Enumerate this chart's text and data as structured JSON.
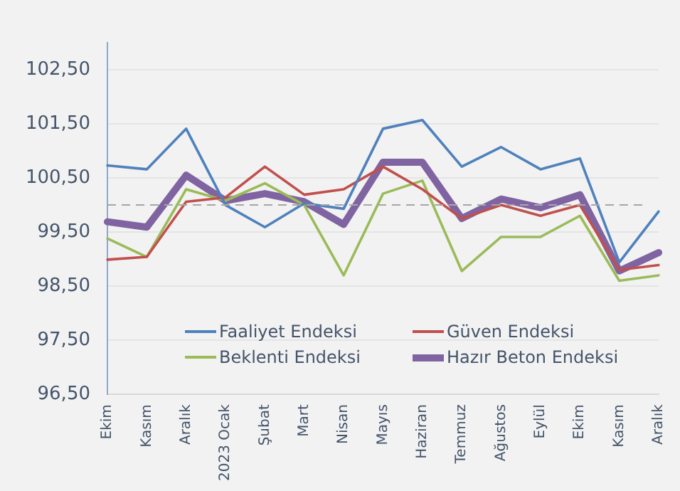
{
  "chart_data": {
    "type": "line",
    "categories": [
      "Ekim",
      "Kasım",
      "Aralık",
      "2023 Ocak",
      "Şubat",
      "Mart",
      "Nisan",
      "Mayıs",
      "Haziran",
      "Temmuz",
      "Ağustos",
      "Eylül",
      "Ekim",
      "Kasım",
      "Aralık"
    ],
    "series": [
      {
        "name": "Faaliyet Endeksi",
        "color": "#4f81bd",
        "values": [
          100.73,
          100.66,
          101.41,
          100.0,
          99.59,
          100.03,
          99.93,
          101.41,
          101.57,
          100.71,
          101.07,
          100.66,
          100.86,
          98.94,
          99.88
        ]
      },
      {
        "name": "Güven Endeksi",
        "color": "#c0504d",
        "values": [
          98.99,
          99.04,
          100.06,
          100.14,
          100.71,
          100.19,
          100.29,
          100.71,
          100.29,
          99.75,
          100.0,
          99.8,
          100.0,
          98.8,
          98.89
        ]
      },
      {
        "name": "Beklenti Endeksi",
        "color": "#9bbb59",
        "values": [
          99.38,
          99.04,
          100.29,
          100.08,
          100.4,
          100.0,
          98.7,
          100.21,
          100.45,
          98.78,
          99.41,
          99.41,
          99.8,
          98.6,
          98.7
        ]
      },
      {
        "name": "Hazır Beton Endeksi",
        "color": "#8064a2",
        "values": [
          99.69,
          99.59,
          100.55,
          100.08,
          100.21,
          100.06,
          99.64,
          100.79,
          100.79,
          99.75,
          100.11,
          99.95,
          100.19,
          98.78,
          99.12
        ]
      }
    ],
    "ylim": [
      96.5,
      103
    ],
    "yticks": [
      {
        "value": 96.5,
        "label": "96,50"
      },
      {
        "value": 97.5,
        "label": "97,50"
      },
      {
        "value": 98.5,
        "label": "98,50"
      },
      {
        "value": 99.5,
        "label": "99,50"
      },
      {
        "value": 100.5,
        "label": "100,50"
      },
      {
        "value": 101.5,
        "label": "101,50"
      },
      {
        "value": 102.5,
        "label": "102,50"
      }
    ],
    "ref_lines": [
      {
        "axis": "y",
        "value": 100,
        "color": "#a6a6a6",
        "line_style": "dashed"
      }
    ],
    "grid": "y",
    "legend": "bottom",
    "marker": "none",
    "line_style": "solid"
  }
}
